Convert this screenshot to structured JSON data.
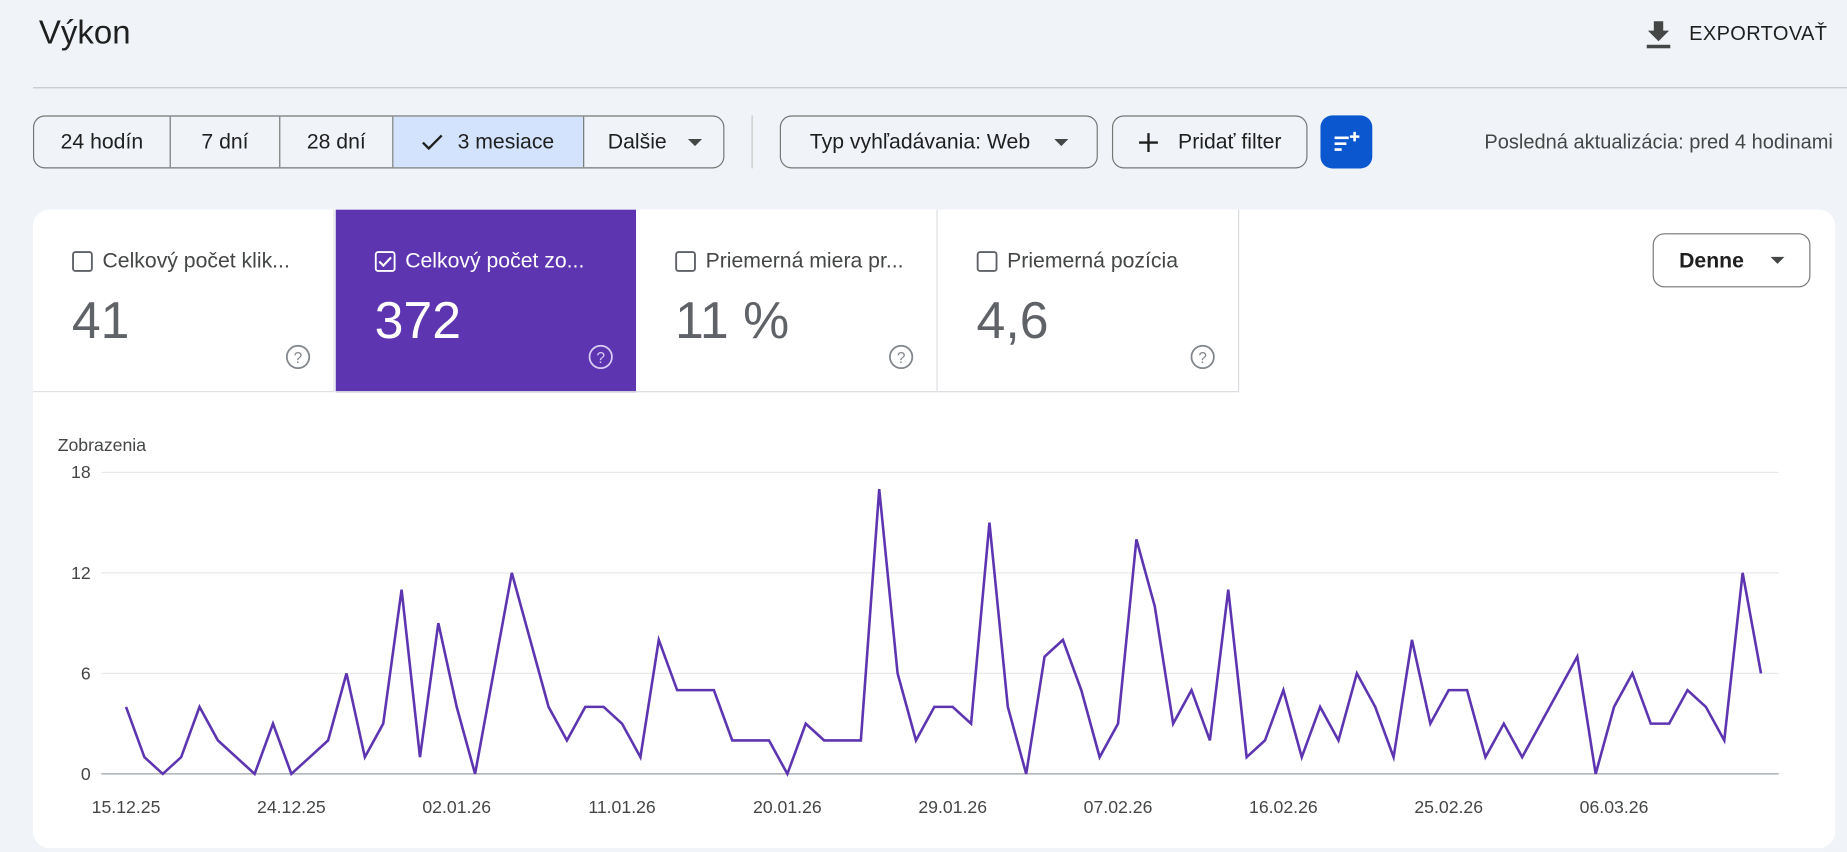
{
  "header": {
    "title": "Výkon",
    "export": "EXPORTOVAŤ"
  },
  "filters": {
    "ranges": [
      "24 hodín",
      "7 dní",
      "28 dní",
      "3 mesiace",
      "Dalšie"
    ],
    "search_type": "Typ vyhľadávania: Web",
    "add_filter": "Pridať filter",
    "last_update": "Posledná aktualizácia: pred 4 hodinami"
  },
  "metrics": [
    {
      "label": "Celkový počet klik...",
      "value": "41"
    },
    {
      "label": "Celkový počet zo...",
      "value": "372"
    },
    {
      "label": "Priemerná miera pr...",
      "value": "11 %"
    },
    {
      "label": "Priemerná pozícia",
      "value": "4,6"
    }
  ],
  "granularity": "Denne",
  "chart_data": {
    "type": "line",
    "y_label": "Zobrazenia",
    "color": "#5e35b1",
    "grid": true,
    "ylim": [
      0,
      18
    ],
    "yticks": [
      0,
      6,
      12,
      18
    ],
    "categories": [
      "15.12.25",
      null,
      null,
      null,
      null,
      null,
      null,
      null,
      null,
      "24.12.25",
      null,
      null,
      null,
      null,
      null,
      null,
      null,
      null,
      "02.01.26",
      null,
      null,
      null,
      null,
      null,
      null,
      null,
      null,
      "11.01.26",
      null,
      null,
      null,
      null,
      null,
      null,
      null,
      null,
      "20.01.26",
      null,
      null,
      null,
      null,
      null,
      null,
      null,
      null,
      "29.01.26",
      null,
      null,
      null,
      null,
      null,
      null,
      null,
      null,
      "07.02.26",
      null,
      null,
      null,
      null,
      null,
      null,
      null,
      null,
      "16.02.26",
      null,
      null,
      null,
      null,
      null,
      null,
      null,
      null,
      "25.02.26",
      null,
      null,
      null,
      null,
      null,
      null,
      null,
      null,
      "06.03.26",
      null,
      null,
      null,
      null,
      null,
      null,
      null,
      null
    ],
    "values": [
      4,
      1,
      0,
      1,
      4,
      2,
      1,
      0,
      3,
      0,
      1,
      2,
      6,
      1,
      3,
      11,
      1,
      9,
      4,
      0,
      6,
      12,
      8,
      4,
      2,
      4,
      4,
      3,
      1,
      8,
      5,
      5,
      5,
      2,
      2,
      2,
      0,
      3,
      2,
      2,
      2,
      17,
      6,
      2,
      4,
      4,
      3,
      15,
      4,
      0,
      7,
      8,
      5,
      1,
      3,
      14,
      10,
      3,
      5,
      2,
      11,
      1,
      2,
      5,
      1,
      4,
      2,
      6,
      4,
      1,
      8,
      3,
      5,
      5,
      1,
      3,
      1,
      3,
      5,
      7,
      0,
      4,
      6,
      3,
      3,
      5,
      4,
      2,
      12,
      6
    ]
  }
}
